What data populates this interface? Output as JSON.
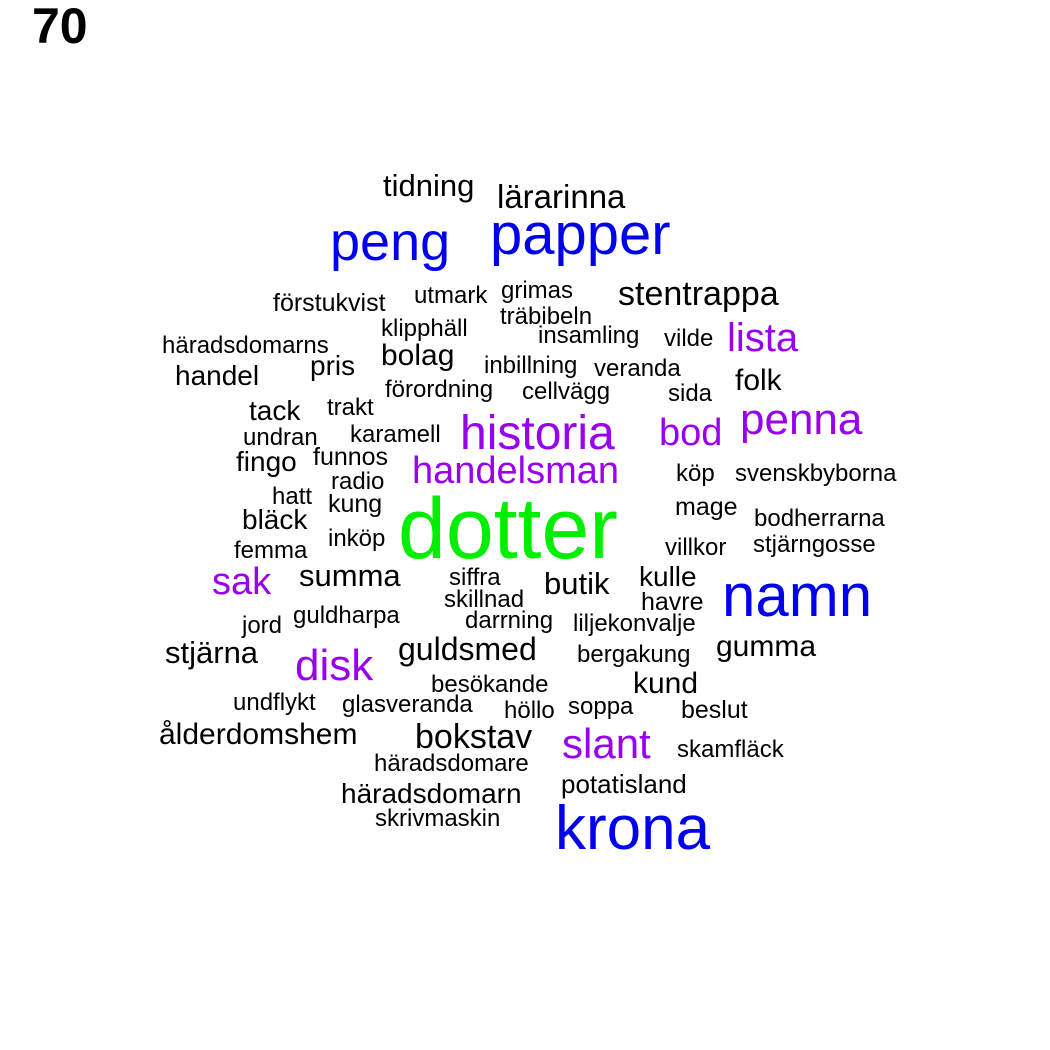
{
  "number": "70",
  "palette": {
    "black": "#000000",
    "blue": "#0000ee",
    "purple": "#9900ee",
    "green": "#00ee00"
  },
  "words": [
    {
      "text": "dotter",
      "color": "green"
    },
    {
      "text": "namn",
      "color": "blue"
    },
    {
      "text": "papper",
      "color": "blue"
    },
    {
      "text": "krona",
      "color": "blue"
    },
    {
      "text": "peng",
      "color": "blue"
    },
    {
      "text": "historia",
      "color": "purple"
    },
    {
      "text": "penna",
      "color": "purple"
    },
    {
      "text": "disk",
      "color": "purple"
    },
    {
      "text": "slant",
      "color": "purple"
    },
    {
      "text": "sak",
      "color": "purple"
    },
    {
      "text": "handelsman",
      "color": "purple"
    },
    {
      "text": "lista",
      "color": "purple"
    },
    {
      "text": "bod",
      "color": "purple"
    },
    {
      "text": "stentrappa",
      "color": "black"
    },
    {
      "text": "lärarinna",
      "color": "black"
    },
    {
      "text": "tidning",
      "color": "black"
    },
    {
      "text": "bokstav",
      "color": "black"
    },
    {
      "text": "guldsmed",
      "color": "black"
    },
    {
      "text": "butik",
      "color": "black"
    },
    {
      "text": "summa",
      "color": "black"
    },
    {
      "text": "stjärna",
      "color": "black"
    },
    {
      "text": "ålderdomshem",
      "color": "black"
    },
    {
      "text": "gumma",
      "color": "black"
    },
    {
      "text": "kund",
      "color": "black"
    },
    {
      "text": "folk",
      "color": "black"
    },
    {
      "text": "bolag",
      "color": "black"
    },
    {
      "text": "handel",
      "color": "black"
    },
    {
      "text": "kulle",
      "color": "black"
    },
    {
      "text": "häradsdomarn",
      "color": "black"
    },
    {
      "text": "bläck",
      "color": "black"
    },
    {
      "text": "fingo",
      "color": "black"
    },
    {
      "text": "pris",
      "color": "black"
    },
    {
      "text": "tack",
      "color": "black"
    },
    {
      "text": "havre",
      "color": "black"
    },
    {
      "text": "förstukvist",
      "color": "black"
    },
    {
      "text": "potatisland",
      "color": "black"
    },
    {
      "text": "mage",
      "color": "black"
    },
    {
      "text": "kung",
      "color": "black"
    },
    {
      "text": "funnos",
      "color": "black"
    },
    {
      "text": "förordning",
      "color": "black"
    },
    {
      "text": "insamling",
      "color": "black"
    },
    {
      "text": "vilde",
      "color": "black"
    },
    {
      "text": "svenskbyborna",
      "color": "black"
    },
    {
      "text": "bodherrarna",
      "color": "black"
    },
    {
      "text": "stjärngosse",
      "color": "black"
    },
    {
      "text": "villkor",
      "color": "black"
    },
    {
      "text": "köp",
      "color": "black"
    },
    {
      "text": "sida",
      "color": "black"
    },
    {
      "text": "cellvägg",
      "color": "black"
    },
    {
      "text": "veranda",
      "color": "black"
    },
    {
      "text": "inbillning",
      "color": "black"
    },
    {
      "text": "klipphäll",
      "color": "black"
    },
    {
      "text": "träbibeln",
      "color": "black"
    },
    {
      "text": "utmark",
      "color": "black"
    },
    {
      "text": "grimas",
      "color": "black"
    },
    {
      "text": "häradsdomarns",
      "color": "black"
    },
    {
      "text": "trakt",
      "color": "black"
    },
    {
      "text": "karamell",
      "color": "black"
    },
    {
      "text": "undran",
      "color": "black"
    },
    {
      "text": "radio",
      "color": "black"
    },
    {
      "text": "hatt",
      "color": "black"
    },
    {
      "text": "inköp",
      "color": "black"
    },
    {
      "text": "femma",
      "color": "black"
    },
    {
      "text": "siffra",
      "color": "black"
    },
    {
      "text": "skillnad",
      "color": "black"
    },
    {
      "text": "darrning",
      "color": "black"
    },
    {
      "text": "liljekonvalje",
      "color": "black"
    },
    {
      "text": "guldharpa",
      "color": "black"
    },
    {
      "text": "jord",
      "color": "black"
    },
    {
      "text": "bergakung",
      "color": "black"
    },
    {
      "text": "besökande",
      "color": "black"
    },
    {
      "text": "undflykt",
      "color": "black"
    },
    {
      "text": "glasveranda",
      "color": "black"
    },
    {
      "text": "höllo",
      "color": "black"
    },
    {
      "text": "soppa",
      "color": "black"
    },
    {
      "text": "beslut",
      "color": "black"
    },
    {
      "text": "skamfläck",
      "color": "black"
    },
    {
      "text": "häradsdomare",
      "color": "black"
    },
    {
      "text": "skrivmaskin",
      "color": "black"
    }
  ]
}
